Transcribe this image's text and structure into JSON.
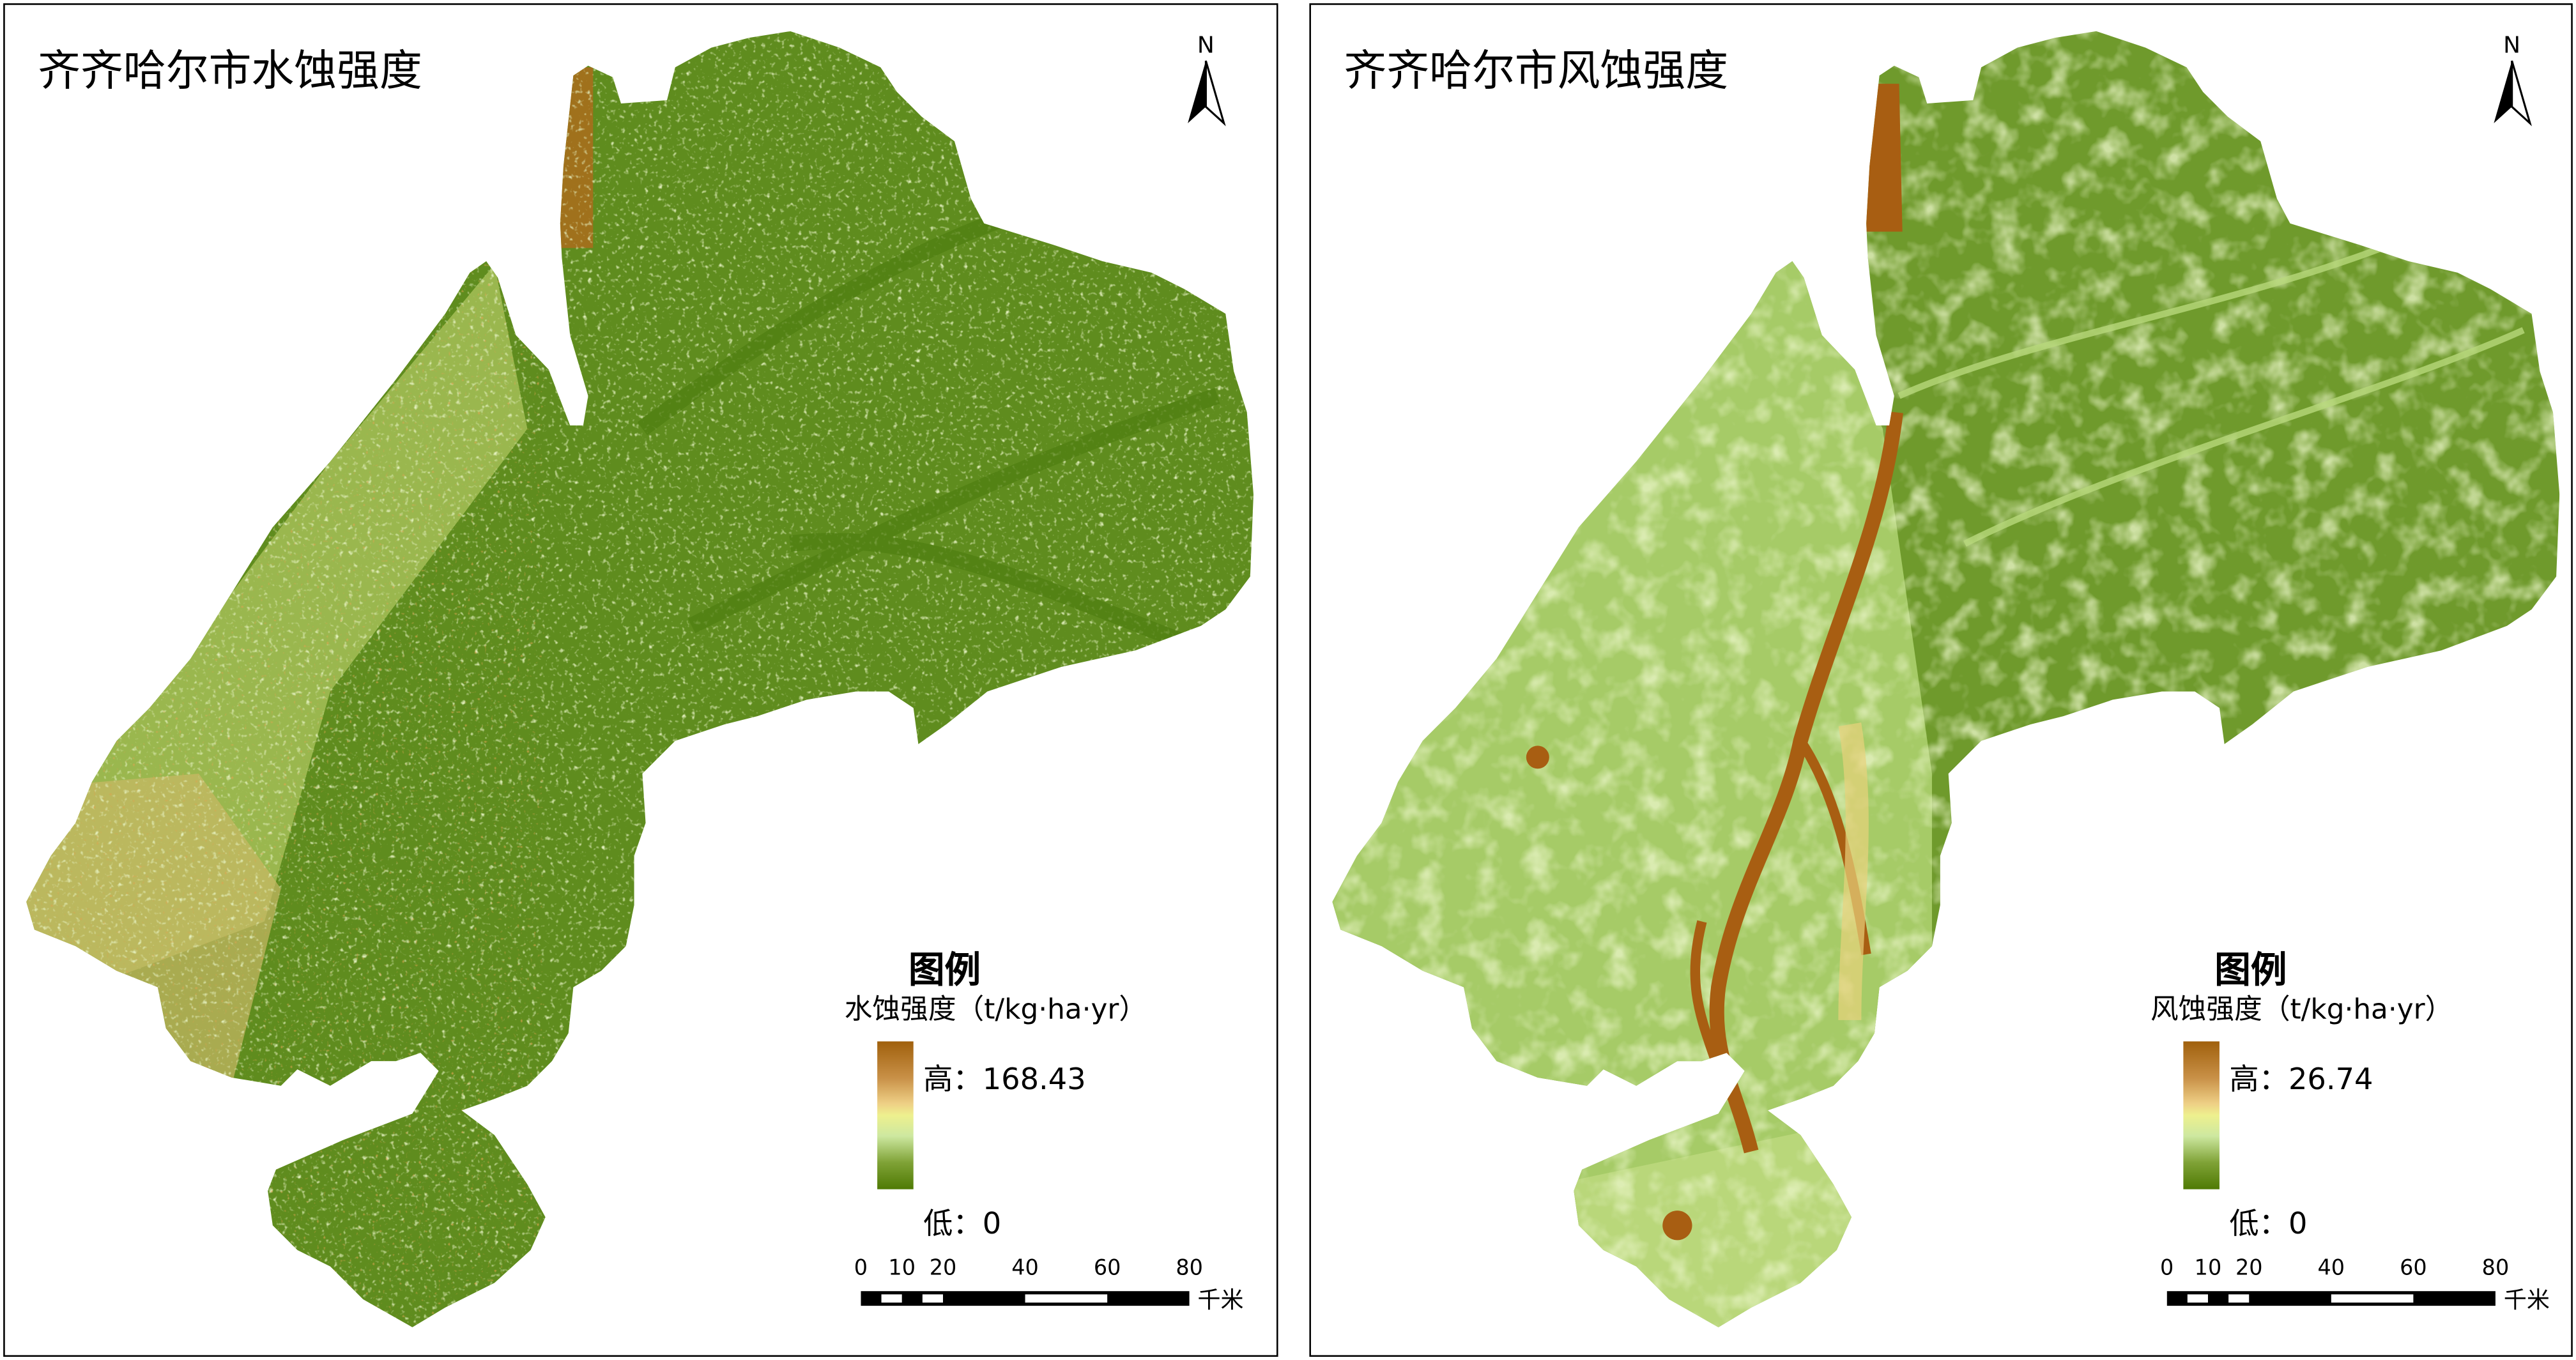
{
  "panels": [
    {
      "title": "齐齐哈尔市水蚀强度",
      "north_label": "N",
      "legend": {
        "heading": "图例",
        "subtitle": "水蚀强度（t/kg·ha·yr）",
        "high_label": "高：168.43",
        "low_label": "低：0",
        "high_value": 168.43,
        "low_value": 0,
        "ramp_colors": [
          "#a0600c",
          "#eecf85",
          "#eef08e",
          "#cde8a0",
          "#4f7a04"
        ]
      },
      "scale": {
        "ticks": [
          "0",
          "10",
          "20",
          "40",
          "60",
          "80"
        ],
        "unit": "千米"
      }
    },
    {
      "title": "齐齐哈尔市风蚀强度",
      "north_label": "N",
      "legend": {
        "heading": "图例",
        "subtitle": "风蚀强度（t/kg·ha·yr）",
        "high_label": "高：26.74",
        "low_label": "低：0",
        "high_value": 26.74,
        "low_value": 0,
        "ramp_colors": [
          "#a0600c",
          "#eecf85",
          "#eef08e",
          "#cde8a0",
          "#4f7a04"
        ]
      },
      "scale": {
        "ticks": [
          "0",
          "10",
          "20",
          "40",
          "60",
          "80"
        ],
        "unit": "千米"
      }
    }
  ]
}
